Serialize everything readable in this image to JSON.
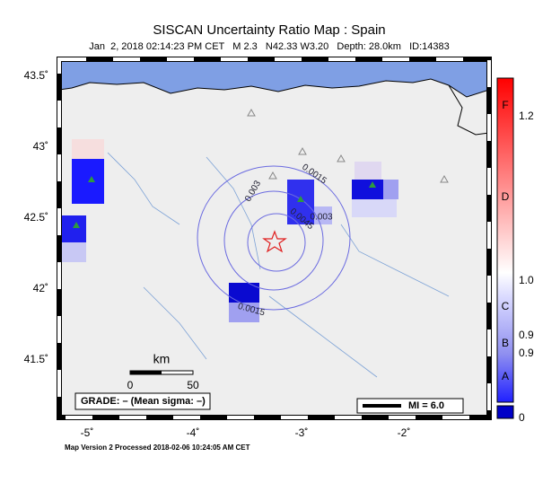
{
  "header": {
    "title": "SISCAN Uncertainty Ratio Map : Spain",
    "subtitle": "Jan  2, 2018 02:14:23 PM CET   M 2.3   N42.33 W3.20   Depth: 28.0km   ID:14383"
  },
  "map": {
    "lat_labels": [
      "43.5˚",
      "43˚",
      "42.5˚",
      "42˚",
      "41.5˚"
    ],
    "lon_labels": [
      "-5˚",
      "-4˚",
      "-3˚",
      "-2˚"
    ],
    "contour_labels": [
      "0.0015",
      "0.003",
      "0.0045",
      "0.003",
      "0.0015"
    ],
    "scale": {
      "unit": "km",
      "start": "0",
      "end": "50"
    },
    "grade": "GRADE: – (Mean sigma: –)",
    "mi": "MI = 6.0"
  },
  "colorbar": {
    "letters": [
      "F",
      "D",
      "C",
      "B",
      "A"
    ],
    "labels": [
      "1.2",
      "1.0",
      "0.9",
      "0.9",
      "0"
    ]
  },
  "footer": "Map Version 2 Processed 2018-02-06 10:24:05 AM CET"
}
